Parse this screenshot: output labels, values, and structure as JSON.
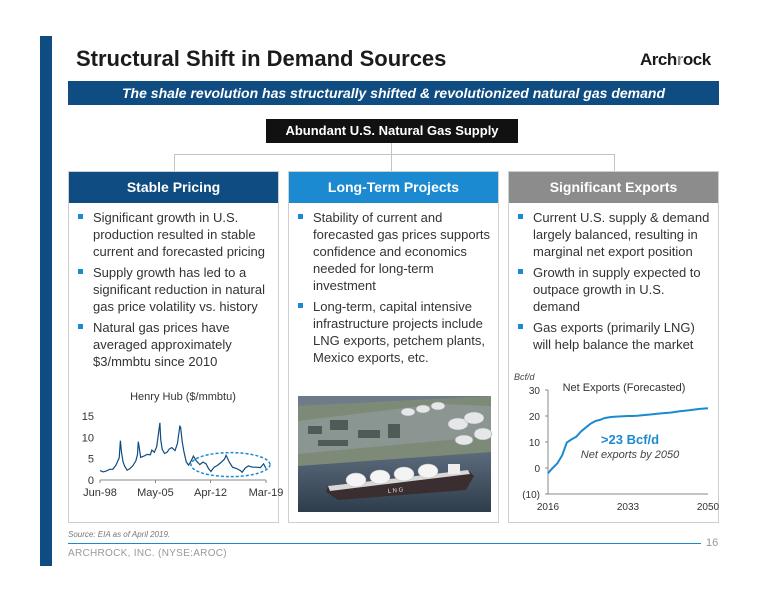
{
  "header": {
    "title": "Structural Shift in Demand Sources",
    "logo": {
      "part1": "Arch",
      "part2": "r",
      "part3": "ock"
    },
    "banner": "The shale revolution has structurally shifted & revolutionized natural gas demand"
  },
  "supply_box": "Abundant U.S. Natural Gas Supply",
  "columns": [
    {
      "heading": "Stable Pricing",
      "color": "#0f4c81",
      "bullets": [
        "Significant growth in U.S. production resulted in stable current and forecasted pricing",
        "Supply growth has led to a significant reduction in natural gas price volatility vs. history",
        "Natural gas prices have averaged approximately $3/mmbtu since 2010"
      ]
    },
    {
      "heading": "Long-Term Projects",
      "color": "#1b8ad1",
      "bullets": [
        "Stability of current and forecasted gas prices supports confidence and economics needed for long-term investment",
        "Long-term, capital intensive infrastructure projects include LNG exports, petchem plants, Mexico exports, etc."
      ]
    },
    {
      "heading": "Significant Exports",
      "color": "#8c8c8c",
      "bullets": [
        "Current U.S. supply & demand largely balanced, resulting in marginal net export position",
        "Growth in supply expected to outpace growth in U.S. demand",
        "Gas exports (primarily LNG) will help balance the market"
      ]
    }
  ],
  "photo": {
    "ship_lettering": "L N G",
    "description_icon": "lng-tanker-photo"
  },
  "chart_data": [
    {
      "type": "line",
      "title": "Henry Hub ($/mmbtu)",
      "xlabel": "",
      "ylabel": "",
      "x_ticks": [
        "Jun-98",
        "May-05",
        "Apr-12",
        "Mar-19"
      ],
      "y_ticks": [
        "0",
        "5",
        "10",
        "15"
      ],
      "ylim": [
        0,
        15
      ],
      "xlim": [
        1998.4,
        2019.2
      ],
      "grid": false,
      "color": "#0f4c81",
      "highlight_ellipse_color": "#1b8ad1",
      "series": [
        {
          "x": [
            1998.4,
            1998.8,
            1999.2,
            1999.6,
            2000.0,
            2000.4,
            2000.8,
            2000.95,
            2001.1,
            2001.3,
            2001.5,
            2001.8,
            2002.1,
            2002.5,
            2002.9,
            2003.1,
            2003.2,
            2003.5,
            2003.9,
            2004.3,
            2004.7,
            2004.9,
            2005.2,
            2005.5,
            2005.8,
            2005.9,
            2006.0,
            2006.2,
            2006.5,
            2006.8,
            2007.1,
            2007.4,
            2007.8,
            2008.1,
            2008.4,
            2008.5,
            2008.7,
            2008.9,
            2009.2,
            2009.5,
            2009.8,
            2010.1,
            2010.5,
            2010.9,
            2011.3,
            2011.7,
            2012.0,
            2012.3,
            2012.7,
            2013.1,
            2013.5,
            2014.0,
            2014.2,
            2014.6,
            2015.0,
            2015.5,
            2016.0,
            2016.2,
            2016.6,
            2017.0,
            2017.5,
            2018.0,
            2018.5,
            2018.9,
            2019.2
          ],
          "y": [
            2.2,
            1.9,
            2.1,
            2.5,
            2.5,
            3.5,
            5.2,
            9.2,
            6.5,
            4.2,
            3.2,
            2.3,
            2.6,
            3.3,
            4.5,
            6.0,
            9.0,
            5.3,
            5.6,
            6.0,
            5.9,
            7.0,
            6.5,
            7.8,
            12.0,
            13.4,
            9.5,
            7.2,
            6.2,
            6.5,
            7.3,
            7.6,
            6.9,
            8.5,
            12.6,
            12.4,
            9.0,
            6.8,
            4.3,
            3.5,
            4.4,
            5.6,
            4.4,
            3.6,
            4.2,
            3.8,
            2.7,
            2.0,
            3.0,
            3.4,
            4.0,
            4.9,
            5.8,
            4.2,
            3.0,
            2.7,
            2.2,
            1.8,
            2.8,
            3.3,
            3.0,
            3.0,
            2.9,
            3.8,
            2.7
          ]
        }
      ]
    },
    {
      "type": "line",
      "title": "Net Exports (Forecasted)",
      "ylabel": "Bcf/d",
      "x_ticks": [
        "2016",
        "2033",
        "2050"
      ],
      "y_ticks": [
        "(10)",
        "0",
        "10",
        "20",
        "30"
      ],
      "ylim": [
        -10,
        30
      ],
      "xlim": [
        2016,
        2050
      ],
      "grid": false,
      "color": "#1b8ad1",
      "annotation": {
        "value": ">23 Bcf/d",
        "subtext": "Net exports by 2050"
      },
      "series": [
        {
          "x": [
            2016,
            2017,
            2018,
            2019,
            2020,
            2021,
            2022,
            2023,
            2024,
            2025,
            2026,
            2027,
            2028,
            2029,
            2030,
            2031,
            2032,
            2033,
            2034,
            2035,
            2036,
            2038,
            2040,
            2042,
            2044,
            2046,
            2048,
            2050
          ],
          "y": [
            -2,
            0,
            1.8,
            4.8,
            9.8,
            11.0,
            12.0,
            14.0,
            15.5,
            17.0,
            18.0,
            18.5,
            19.2,
            19.5,
            19.7,
            19.8,
            19.9,
            20.0,
            20.0,
            20.1,
            20.3,
            20.6,
            21.0,
            21.3,
            21.8,
            22.2,
            22.7,
            23.0
          ]
        }
      ]
    }
  ],
  "footer": {
    "source": "Source: EIA as of  April 2019.",
    "company": "ARCHROCK, INC. (NYSE:AROC)",
    "page": "16"
  }
}
